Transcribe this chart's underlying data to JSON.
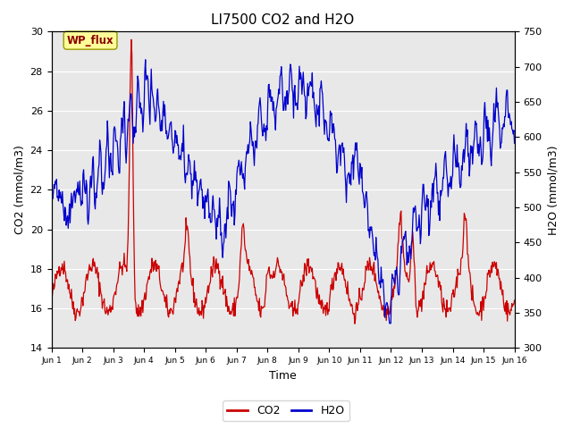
{
  "title": "LI7500 CO2 and H2O",
  "xlabel": "Time",
  "ylabel_left": "CO2 (mmol/m3)",
  "ylabel_right": "H2O (mmol/m3)",
  "ylim_left": [
    14,
    30
  ],
  "ylim_right": [
    300,
    750
  ],
  "yticks_left": [
    14,
    16,
    18,
    20,
    22,
    24,
    26,
    28,
    30
  ],
  "yticks_right": [
    300,
    350,
    400,
    450,
    500,
    550,
    600,
    650,
    700,
    750
  ],
  "xtick_labels": [
    "Jun 1",
    "Jun 2",
    "Jun 3",
    "Jun 4",
    "Jun 5",
    "Jun 6",
    "Jun 7",
    "Jun 8",
    "Jun 9",
    "Jun 10",
    "Jun 11",
    "Jun 12",
    "Jun 13",
    "Jun 14",
    "Jun 15",
    "Jun 16"
  ],
  "legend_label_co2": "CO2",
  "legend_label_h2o": "H2O",
  "co2_color": "#cc0000",
  "h2o_color": "#0000cc",
  "bg_color": "#e8e8e8",
  "annotation_text": "WP_flux",
  "annotation_bg": "#ffff99",
  "annotation_edge": "#999900",
  "grid_color": "white",
  "title_fontsize": 11
}
